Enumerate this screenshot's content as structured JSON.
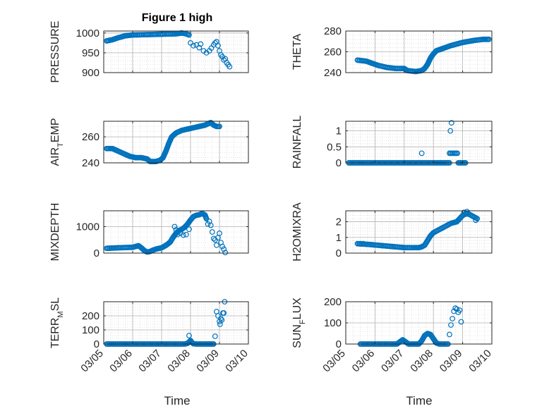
{
  "figure": {
    "title": "Figure 1 high",
    "xlabel": "Time",
    "x_ticks": [
      "03/05",
      "03/06",
      "03/07",
      "03/08",
      "03/09",
      "03/10"
    ],
    "marker_color": "#0072BD"
  },
  "chart_data": [
    {
      "type": "scatter",
      "ylabel_parts": [
        {
          "t": "PRESSURE",
          "sub": false
        }
      ],
      "xlim": [
        0,
        5
      ],
      "ylim": [
        900,
        1005
      ],
      "yticks": [
        900,
        950,
        1000
      ],
      "ytick_labels": [
        "900",
        "950",
        "1000"
      ],
      "segments": [
        {
          "kind": "line",
          "pts": [
            [
              0.1,
              980
            ],
            [
              0.3,
              983
            ],
            [
              0.5,
              988
            ],
            [
              0.75,
              993
            ],
            [
              1.0,
              995
            ],
            [
              1.5,
              996
            ],
            [
              2.0,
              997
            ],
            [
              2.5,
              998
            ],
            [
              2.7,
              1000
            ],
            [
              2.85,
              998
            ],
            [
              2.95,
              995
            ]
          ]
        },
        {
          "kind": "sparse",
          "pts": [
            [
              3.0,
              975
            ],
            [
              3.1,
              968
            ],
            [
              3.2,
              970
            ],
            [
              3.3,
              963
            ],
            [
              3.35,
              972
            ],
            [
              3.45,
              955
            ],
            [
              3.55,
              950
            ],
            [
              3.65,
              955
            ],
            [
              3.72,
              962
            ],
            [
              3.8,
              970
            ],
            [
              3.85,
              975
            ],
            [
              3.9,
              978
            ],
            [
              3.95,
              968
            ],
            [
              4.0,
              955
            ],
            [
              4.05,
              945
            ],
            [
              4.1,
              940
            ],
            [
              4.15,
              932
            ],
            [
              4.2,
              935
            ],
            [
              4.25,
              925
            ],
            [
              4.3,
              920
            ],
            [
              4.35,
              915
            ]
          ]
        }
      ]
    },
    {
      "type": "scatter",
      "ylabel_parts": [
        {
          "t": "THETA",
          "sub": false
        }
      ],
      "xlim": [
        0,
        5
      ],
      "ylim": [
        240,
        280
      ],
      "yticks": [
        240,
        260,
        280
      ],
      "ytick_labels": [
        "240",
        "260",
        "280"
      ],
      "segments": [
        {
          "kind": "line",
          "pts": [
            [
              0.4,
              252
            ],
            [
              0.7,
              251
            ],
            [
              0.9,
              249
            ],
            [
              1.1,
              247
            ],
            [
              1.4,
              245
            ],
            [
              1.7,
              244
            ],
            [
              2.0,
              244
            ],
            [
              2.1,
              242
            ],
            [
              2.4,
              241
            ],
            [
              2.6,
              242
            ],
            [
              2.7,
              244
            ],
            [
              2.8,
              248
            ],
            [
              2.9,
              254
            ],
            [
              3.0,
              258
            ],
            [
              3.1,
              261
            ],
            [
              3.3,
              263
            ],
            [
              3.6,
              266
            ],
            [
              4.0,
              269
            ],
            [
              4.4,
              271
            ],
            [
              4.7,
              272
            ],
            [
              4.9,
              272
            ]
          ]
        }
      ]
    },
    {
      "type": "scatter",
      "ylabel_parts": [
        {
          "t": "AIR",
          "sub": false
        },
        {
          "t": "T",
          "sub": true
        },
        {
          "t": "EMP",
          "sub": false
        }
      ],
      "xlim": [
        0,
        5
      ],
      "ylim": [
        240,
        272
      ],
      "yticks": [
        240,
        260
      ],
      "ytick_labels": [
        "240",
        "260"
      ],
      "segments": [
        {
          "kind": "line",
          "pts": [
            [
              0.1,
              251
            ],
            [
              0.3,
              251
            ],
            [
              0.5,
              249
            ],
            [
              0.7,
              247
            ],
            [
              0.9,
              245
            ],
            [
              1.1,
              244
            ],
            [
              1.3,
              244
            ],
            [
              1.5,
              243
            ],
            [
              1.6,
              241
            ],
            [
              1.8,
              241
            ],
            [
              1.95,
              242
            ],
            [
              2.05,
              244
            ],
            [
              2.15,
              249
            ],
            [
              2.25,
              255
            ],
            [
              2.35,
              260
            ],
            [
              2.5,
              263
            ],
            [
              2.7,
              265
            ],
            [
              2.9,
              266
            ],
            [
              3.1,
              267
            ],
            [
              3.3,
              268
            ],
            [
              3.5,
              269
            ],
            [
              3.7,
              271
            ],
            [
              3.8,
              269
            ],
            [
              3.9,
              268
            ],
            [
              4.0,
              268
            ]
          ]
        }
      ]
    },
    {
      "type": "scatter",
      "ylabel_parts": [
        {
          "t": "RAINFALL",
          "sub": false
        }
      ],
      "xlim": [
        0,
        5
      ],
      "ylim": [
        0,
        1.3
      ],
      "yticks": [
        0,
        0.5,
        1
      ],
      "ytick_labels": [
        "0",
        "0.5",
        "1"
      ],
      "segments": [
        {
          "kind": "line",
          "pts": [
            [
              0.1,
              0
            ],
            [
              1.0,
              0
            ],
            [
              2.0,
              0
            ],
            [
              3.0,
              0
            ],
            [
              3.55,
              0
            ]
          ]
        },
        {
          "kind": "line",
          "pts": [
            [
              3.55,
              0.3
            ],
            [
              3.82,
              0.3
            ]
          ]
        },
        {
          "kind": "line",
          "pts": [
            [
              3.85,
              0
            ],
            [
              4.1,
              0
            ]
          ]
        },
        {
          "kind": "sparse",
          "pts": [
            [
              2.6,
              0.3
            ],
            [
              3.58,
              1.0
            ],
            [
              3.62,
              1.25
            ]
          ]
        }
      ]
    },
    {
      "type": "scatter",
      "ylabel_parts": [
        {
          "t": "MIXDEPTH",
          "sub": false
        }
      ],
      "xlim": [
        0,
        5
      ],
      "ylim": [
        0,
        1600
      ],
      "yticks": [
        0,
        1000
      ],
      "ytick_labels": [
        "0",
        "1000"
      ],
      "segments": [
        {
          "kind": "line",
          "pts": [
            [
              0.1,
              180
            ],
            [
              0.5,
              200
            ],
            [
              1.0,
              220
            ],
            [
              1.2,
              280
            ],
            [
              1.3,
              200
            ],
            [
              1.4,
              100
            ],
            [
              1.5,
              40
            ],
            [
              1.6,
              60
            ],
            [
              1.7,
              110
            ],
            [
              1.8,
              150
            ],
            [
              2.0,
              200
            ],
            [
              2.1,
              260
            ],
            [
              2.2,
              330
            ],
            [
              2.3,
              420
            ],
            [
              2.4,
              600
            ],
            [
              2.5,
              750
            ],
            [
              2.6,
              850
            ],
            [
              2.7,
              900
            ],
            [
              2.8,
              980
            ],
            [
              2.9,
              1100
            ],
            [
              3.0,
              1250
            ],
            [
              3.1,
              1380
            ],
            [
              3.2,
              1430
            ],
            [
              3.3,
              1450
            ],
            [
              3.4,
              1500
            ],
            [
              3.5,
              1440
            ],
            [
              3.55,
              1300
            ]
          ]
        },
        {
          "kind": "sparse",
          "pts": [
            [
              2.45,
              1000
            ],
            [
              2.5,
              880
            ],
            [
              2.55,
              700
            ],
            [
              2.65,
              750
            ],
            [
              2.75,
              680
            ],
            [
              2.85,
              700
            ],
            [
              2.95,
              900
            ],
            [
              3.6,
              1100
            ],
            [
              3.65,
              1200
            ],
            [
              3.7,
              1050
            ],
            [
              3.75,
              800
            ],
            [
              3.8,
              550
            ],
            [
              3.85,
              500
            ],
            [
              3.9,
              300
            ],
            [
              3.95,
              580
            ],
            [
              4.0,
              750
            ],
            [
              4.05,
              400
            ],
            [
              4.1,
              250
            ],
            [
              4.15,
              150
            ],
            [
              4.2,
              20
            ]
          ]
        }
      ]
    },
    {
      "type": "scatter",
      "ylabel_parts": [
        {
          "t": "H2OMIXRA",
          "sub": false
        }
      ],
      "xlim": [
        0,
        5
      ],
      "ylim": [
        0,
        2.7
      ],
      "yticks": [
        0,
        1,
        2
      ],
      "ytick_labels": [
        "0",
        "1",
        "2"
      ],
      "segments": [
        {
          "kind": "line",
          "pts": [
            [
              0.4,
              0.6
            ],
            [
              0.8,
              0.55
            ],
            [
              1.1,
              0.5
            ],
            [
              1.4,
              0.45
            ],
            [
              1.7,
              0.4
            ],
            [
              2.0,
              0.35
            ],
            [
              2.3,
              0.35
            ],
            [
              2.5,
              0.35
            ],
            [
              2.6,
              0.4
            ],
            [
              2.7,
              0.5
            ],
            [
              2.8,
              0.8
            ],
            [
              2.9,
              1.1
            ],
            [
              3.0,
              1.3
            ],
            [
              3.2,
              1.5
            ],
            [
              3.4,
              1.7
            ],
            [
              3.6,
              1.9
            ],
            [
              3.8,
              2.0
            ],
            [
              3.9,
              2.2
            ],
            [
              4.0,
              2.4
            ],
            [
              4.1,
              2.5
            ],
            [
              4.2,
              2.5
            ],
            [
              4.3,
              2.4
            ],
            [
              4.4,
              2.3
            ],
            [
              4.5,
              2.2
            ]
          ]
        },
        {
          "kind": "sparse",
          "pts": [
            [
              0.5,
              0.6
            ],
            [
              0.6,
              0.6
            ],
            [
              4.05,
              2.6
            ],
            [
              4.15,
              2.65
            ],
            [
              4.45,
              2.1
            ]
          ]
        }
      ]
    },
    {
      "type": "scatter",
      "ylabel_parts": [
        {
          "t": "TERR",
          "sub": false
        },
        {
          "t": "M",
          "sub": true
        },
        {
          "t": "SL",
          "sub": false
        }
      ],
      "xlim": [
        0,
        5
      ],
      "ylim": [
        0,
        300
      ],
      "yticks": [
        0,
        100,
        200
      ],
      "ytick_labels": [
        "0",
        "100",
        "200"
      ],
      "segments": [
        {
          "kind": "line",
          "pts": [
            [
              0.1,
              0
            ],
            [
              1.0,
              0
            ],
            [
              2.0,
              0
            ],
            [
              2.8,
              0
            ],
            [
              2.9,
              5
            ],
            [
              3.0,
              25
            ],
            [
              3.05,
              10
            ],
            [
              3.1,
              2
            ],
            [
              3.2,
              0
            ],
            [
              3.6,
              0
            ],
            [
              3.8,
              0
            ]
          ]
        },
        {
          "kind": "sparse",
          "pts": [
            [
              2.95,
              60
            ],
            [
              3.85,
              55
            ],
            [
              3.9,
              230
            ],
            [
              3.95,
              200
            ],
            [
              4.0,
              160
            ],
            [
              4.02,
              140
            ],
            [
              4.05,
              180
            ],
            [
              4.08,
              170
            ],
            [
              4.12,
              220
            ],
            [
              4.15,
              220
            ],
            [
              4.18,
              300
            ]
          ]
        }
      ]
    },
    {
      "type": "scatter",
      "ylabel_parts": [
        {
          "t": "SUN",
          "sub": false
        },
        {
          "t": "F",
          "sub": true
        },
        {
          "t": "LUX",
          "sub": false
        }
      ],
      "xlim": [
        0,
        5
      ],
      "ylim": [
        0,
        200
      ],
      "yticks": [
        0,
        100,
        200
      ],
      "ytick_labels": [
        "0",
        "100",
        "200"
      ],
      "segments": [
        {
          "kind": "line",
          "pts": [
            [
              0.5,
              0
            ],
            [
              1.0,
              0
            ],
            [
              1.5,
              0
            ],
            [
              1.75,
              0
            ],
            [
              1.85,
              10
            ],
            [
              1.95,
              20
            ],
            [
              2.05,
              10
            ],
            [
              2.15,
              0
            ],
            [
              2.5,
              0
            ],
            [
              2.6,
              15
            ],
            [
              2.7,
              40
            ],
            [
              2.8,
              50
            ],
            [
              2.9,
              45
            ],
            [
              3.0,
              25
            ],
            [
              3.1,
              5
            ],
            [
              3.2,
              0
            ],
            [
              3.5,
              0
            ]
          ]
        },
        {
          "kind": "sparse",
          "pts": [
            [
              3.55,
              45
            ],
            [
              3.6,
              90
            ],
            [
              3.65,
              120
            ],
            [
              3.7,
              155
            ],
            [
              3.75,
              170
            ],
            [
              3.8,
              165
            ],
            [
              3.85,
              150
            ],
            [
              3.9,
              160
            ],
            [
              3.95,
              105
            ]
          ]
        }
      ]
    }
  ]
}
